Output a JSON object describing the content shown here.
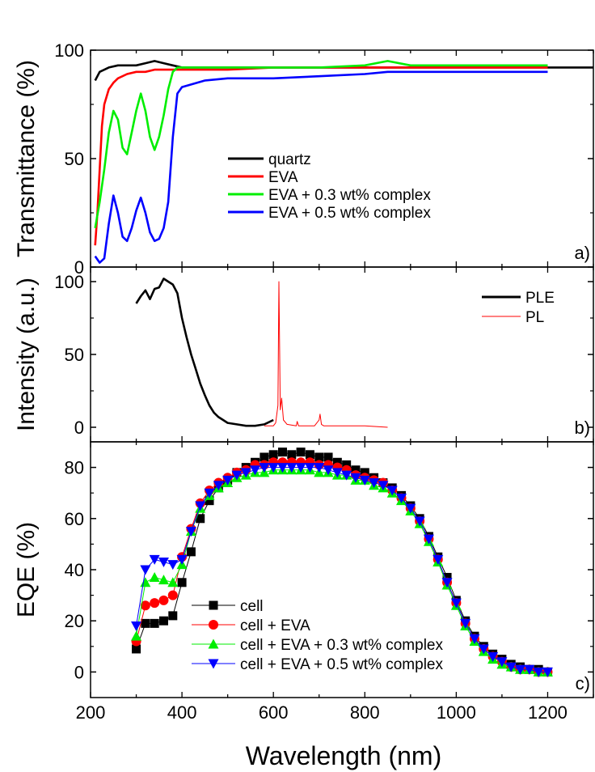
{
  "figure": {
    "x_axis_label": "Wavelength (nm)",
    "x_ticks": [
      "200",
      "400",
      "600",
      "800",
      "1000",
      "1200"
    ]
  },
  "chart_data": [
    {
      "type": "line",
      "panel": "a)",
      "ylabel": "Transmittance (%)",
      "xlabel": "Wavelength (nm)",
      "xlim": [
        200,
        1300
      ],
      "ylim": [
        0,
        100
      ],
      "y_ticks": [
        "0",
        "50",
        "100"
      ],
      "legend_placement": "center-right",
      "series": [
        {
          "name": "quartz",
          "color": "#000000",
          "x": [
            210,
            220,
            240,
            260,
            280,
            300,
            320,
            340,
            360,
            380,
            400,
            450,
            500,
            600,
            700,
            800,
            900,
            1000,
            1100,
            1200,
            1300
          ],
          "y": [
            86,
            90,
            92,
            93,
            93,
            93,
            94,
            95,
            94,
            93,
            92,
            92,
            92,
            92,
            92,
            92,
            92,
            92,
            92,
            92,
            92
          ]
        },
        {
          "name": "EVA",
          "color": "#ff0000",
          "x": [
            210,
            215,
            220,
            225,
            230,
            240,
            250,
            260,
            280,
            300,
            320,
            340,
            360,
            380,
            400,
            450,
            500,
            600,
            700,
            800,
            900,
            1000,
            1100,
            1200
          ],
          "y": [
            10,
            25,
            45,
            65,
            75,
            82,
            85,
            87,
            89,
            90,
            90,
            91,
            91,
            91,
            91,
            91,
            91,
            92,
            92,
            92,
            92,
            92,
            92,
            92
          ]
        },
        {
          "name": "EVA + 0.3 wt% complex",
          "color": "#00ee00",
          "x": [
            210,
            220,
            230,
            240,
            250,
            260,
            270,
            280,
            290,
            300,
            310,
            320,
            330,
            340,
            350,
            360,
            370,
            380,
            390,
            400,
            450,
            500,
            600,
            700,
            800,
            850,
            900,
            1000,
            1100,
            1200
          ],
          "y": [
            18,
            30,
            45,
            62,
            72,
            68,
            55,
            52,
            62,
            72,
            80,
            72,
            60,
            54,
            60,
            70,
            82,
            90,
            92,
            92,
            92,
            92,
            92,
            92,
            93,
            95,
            93,
            93,
            93,
            93
          ]
        },
        {
          "name": "EVA + 0.5 wt% complex",
          "color": "#0000ff",
          "x": [
            210,
            220,
            230,
            240,
            250,
            260,
            270,
            280,
            290,
            300,
            310,
            320,
            330,
            340,
            350,
            360,
            370,
            380,
            390,
            400,
            450,
            500,
            600,
            700,
            800,
            850,
            900,
            1000,
            1100,
            1200
          ],
          "y": [
            5,
            2,
            4,
            20,
            33,
            25,
            14,
            12,
            18,
            26,
            32,
            25,
            16,
            12,
            13,
            18,
            30,
            60,
            80,
            83,
            86,
            87,
            87,
            88,
            89,
            90,
            90,
            90,
            90,
            90
          ]
        }
      ]
    },
    {
      "type": "line",
      "panel": "b)",
      "ylabel": "Intensity (a.u.)",
      "xlabel": "Wavelength (nm)",
      "xlim": [
        200,
        1300
      ],
      "ylim": [
        -10,
        110
      ],
      "y_ticks": [
        "0",
        "50",
        "100"
      ],
      "legend_placement": "top-right",
      "series": [
        {
          "name": "PLE",
          "color": "#000000",
          "x": [
            300,
            310,
            320,
            330,
            340,
            350,
            360,
            370,
            380,
            390,
            400,
            410,
            420,
            430,
            440,
            450,
            460,
            470,
            480,
            490,
            500,
            520,
            540,
            560,
            580,
            600
          ],
          "y": [
            85,
            90,
            94,
            88,
            95,
            96,
            102,
            100,
            98,
            92,
            75,
            62,
            50,
            40,
            30,
            22,
            15,
            10,
            7,
            5,
            3,
            2,
            1,
            1,
            2,
            5
          ]
        },
        {
          "name": "PL",
          "color": "#ff0000",
          "x": [
            580,
            600,
            605,
            610,
            612,
            615,
            618,
            622,
            630,
            650,
            652,
            655,
            670,
            690,
            700,
            702,
            705,
            710,
            750,
            800,
            850
          ],
          "y": [
            1,
            1,
            3,
            15,
            100,
            12,
            20,
            5,
            2,
            1,
            4,
            1,
            1,
            1,
            5,
            9,
            2,
            1,
            1,
            1,
            0
          ]
        }
      ]
    },
    {
      "type": "line",
      "panel": "c)",
      "ylabel": "EQE (%)",
      "xlabel": "Wavelength (nm)",
      "xlim": [
        200,
        1300
      ],
      "ylim": [
        -10,
        90
      ],
      "y_ticks": [
        "0",
        "20",
        "40",
        "60",
        "80"
      ],
      "legend_placement": "bottom-left",
      "series": [
        {
          "name": "cell",
          "color": "#000000",
          "marker": "square",
          "x": [
            300,
            320,
            340,
            360,
            380,
            400,
            420,
            440,
            460,
            480,
            500,
            520,
            540,
            560,
            580,
            600,
            620,
            640,
            660,
            680,
            700,
            720,
            740,
            760,
            780,
            800,
            820,
            840,
            860,
            880,
            900,
            920,
            940,
            960,
            980,
            1000,
            1020,
            1040,
            1060,
            1080,
            1100,
            1120,
            1140,
            1160,
            1180,
            1200
          ],
          "y": [
            9,
            19,
            19,
            20,
            22,
            35,
            47,
            60,
            67,
            72,
            75,
            78,
            80,
            82,
            84,
            85,
            86,
            85,
            86,
            85,
            84,
            84,
            82,
            81,
            79,
            78,
            76,
            74,
            72,
            69,
            65,
            60,
            53,
            45,
            37,
            28,
            20,
            14,
            10,
            7,
            5,
            3,
            2,
            1,
            1,
            0
          ]
        },
        {
          "name": "cell + EVA",
          "color": "#ff0000",
          "marker": "circle",
          "x": [
            300,
            320,
            340,
            360,
            380,
            400,
            420,
            440,
            460,
            480,
            500,
            520,
            540,
            560,
            580,
            600,
            620,
            640,
            660,
            680,
            700,
            720,
            740,
            760,
            780,
            800,
            820,
            840,
            860,
            880,
            900,
            920,
            940,
            960,
            980,
            1000,
            1020,
            1040,
            1060,
            1080,
            1100,
            1120,
            1140,
            1160,
            1180,
            1200
          ],
          "y": [
            12,
            26,
            27,
            28,
            30,
            45,
            56,
            66,
            71,
            74,
            76,
            78,
            79,
            81,
            81,
            82,
            82,
            82,
            82,
            82,
            81,
            81,
            80,
            79,
            77,
            76,
            75,
            74,
            71,
            68,
            64,
            59,
            52,
            44,
            35,
            27,
            19,
            13,
            9,
            6,
            4,
            2,
            1,
            1,
            0,
            0
          ]
        },
        {
          "name": "cell + EVA + 0.3 wt% complex",
          "color": "#00ee00",
          "marker": "triangle-up",
          "x": [
            300,
            320,
            340,
            360,
            380,
            400,
            420,
            440,
            460,
            480,
            500,
            520,
            540,
            560,
            580,
            600,
            620,
            640,
            660,
            680,
            700,
            720,
            740,
            760,
            780,
            800,
            820,
            840,
            860,
            880,
            900,
            920,
            940,
            960,
            980,
            1000,
            1020,
            1040,
            1060,
            1080,
            1100,
            1120,
            1140,
            1160,
            1180,
            1200
          ],
          "y": [
            14,
            35,
            37,
            36,
            35,
            42,
            55,
            64,
            69,
            72,
            74,
            76,
            77,
            78,
            78,
            79,
            79,
            79,
            79,
            79,
            78,
            78,
            77,
            77,
            75,
            75,
            73,
            72,
            70,
            67,
            63,
            58,
            51,
            43,
            34,
            26,
            18,
            12,
            8,
            5,
            3,
            2,
            1,
            1,
            0,
            0
          ]
        },
        {
          "name": "cell + EVA + 0.5 wt% complex",
          "color": "#0000ff",
          "marker": "triangle-down",
          "x": [
            300,
            320,
            340,
            360,
            380,
            400,
            420,
            440,
            460,
            480,
            500,
            520,
            540,
            560,
            580,
            600,
            620,
            640,
            660,
            680,
            700,
            720,
            740,
            760,
            780,
            800,
            820,
            840,
            860,
            880,
            900,
            920,
            940,
            960,
            980,
            1000,
            1020,
            1040,
            1060,
            1080,
            1100,
            1120,
            1140,
            1160,
            1180,
            1200
          ],
          "y": [
            18,
            40,
            44,
            43,
            42,
            44,
            55,
            65,
            70,
            73,
            75,
            77,
            78,
            79,
            80,
            80,
            80,
            80,
            80,
            80,
            80,
            79,
            78,
            77,
            76,
            75,
            74,
            73,
            71,
            68,
            64,
            59,
            52,
            44,
            35,
            27,
            19,
            13,
            9,
            6,
            4,
            2,
            1,
            1,
            0,
            0
          ]
        }
      ]
    }
  ]
}
